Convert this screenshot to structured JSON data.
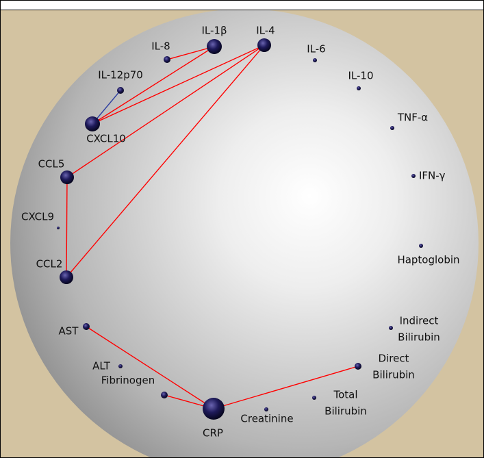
{
  "nodes": [
    {
      "label": [
        "IL-1β"
      ]
    },
    {
      "label": [
        "IL-4"
      ]
    },
    {
      "label": [
        "IL-8"
      ]
    },
    {
      "label": [
        "IL-6"
      ]
    },
    {
      "label": [
        "IL-10"
      ]
    },
    {
      "label": [
        "IL-12p70"
      ]
    },
    {
      "label": [
        "CXCL10"
      ]
    },
    {
      "label": [
        "TNF-α"
      ]
    },
    {
      "label": [
        "CCL5"
      ]
    },
    {
      "label": [
        "IFN-γ"
      ]
    },
    {
      "label": [
        "CXCL9"
      ]
    },
    {
      "label": [
        "Haptoglobin"
      ]
    },
    {
      "label": [
        "CCL2"
      ]
    },
    {
      "label": [
        "AST"
      ]
    },
    {
      "label": [
        "Indirect",
        "Bilirubin"
      ]
    },
    {
      "label": [
        "ALT"
      ]
    },
    {
      "label": [
        "Direct",
        "Bilirubin"
      ]
    },
    {
      "label": [
        "Fibrinogen"
      ]
    },
    {
      "label": [
        "Total",
        "Bilirubin"
      ]
    },
    {
      "label": [
        "CRP"
      ]
    },
    {
      "label": [
        "Creatinine"
      ]
    }
  ]
}
